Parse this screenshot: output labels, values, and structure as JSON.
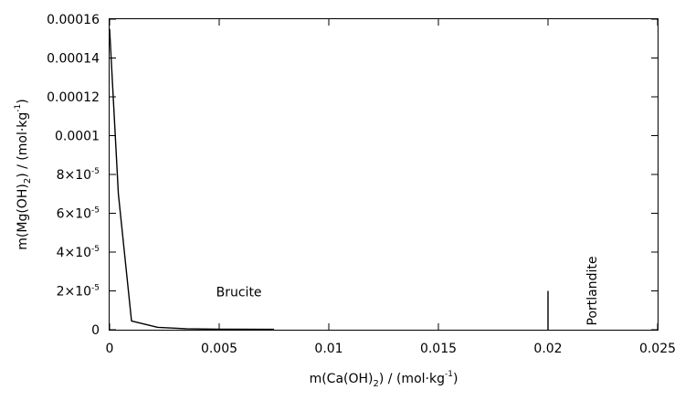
{
  "chart_data": {
    "type": "line",
    "title": "",
    "xlabel": {
      "prefix": "m(Ca(OH)",
      "sub": "2",
      "mid": ") / (mol·kg",
      "sup": "-1",
      "suffix": ")"
    },
    "ylabel": {
      "prefix": "m(Mg(OH)",
      "sub": "2",
      "mid": ") / (mol·kg",
      "sup": "-1",
      "suffix": ")"
    },
    "xlim": [
      0,
      0.025
    ],
    "ylim": [
      0,
      0.00016
    ],
    "x_ticks": [
      {
        "value": 0,
        "label": "0"
      },
      {
        "value": 0.005,
        "label": "0.005"
      },
      {
        "value": 0.01,
        "label": "0.01"
      },
      {
        "value": 0.015,
        "label": "0.015"
      },
      {
        "value": 0.02,
        "label": "0.02"
      },
      {
        "value": 0.025,
        "label": "0.025"
      }
    ],
    "y_ticks": [
      {
        "value": 0,
        "label": "0"
      },
      {
        "value": 2e-05,
        "mantissa": "2×10",
        "exp": "-5"
      },
      {
        "value": 4e-05,
        "mantissa": "4×10",
        "exp": "-5"
      },
      {
        "value": 6e-05,
        "mantissa": "6×10",
        "exp": "-5"
      },
      {
        "value": 8e-05,
        "mantissa": "8×10",
        "exp": "-5"
      },
      {
        "value": 0.0001,
        "label": "0.0001"
      },
      {
        "value": 0.00012,
        "label": "0.00012"
      },
      {
        "value": 0.00014,
        "label": "0.00014"
      },
      {
        "value": 0.00016,
        "label": "0.00016"
      }
    ],
    "series": [
      {
        "x": [
          0,
          0.0004,
          0.001,
          0.0022,
          0.0035,
          0.005,
          0.0075
        ],
        "y": [
          0.000155,
          7e-05,
          4.5e-06,
          1.2e-06,
          5e-07,
          3e-07,
          2e-07
        ]
      },
      {
        "x": [
          0.02,
          0.02
        ],
        "y": [
          0,
          2e-05
        ]
      }
    ],
    "annotations": [
      {
        "text": "Brucite",
        "x": 0.0059,
        "y": 1.95e-05,
        "rotate": 0
      },
      {
        "text": "Portlandite",
        "x": 0.0222,
        "y": 2e-05,
        "rotate": -90
      }
    ],
    "grid": false,
    "legend": "none"
  }
}
